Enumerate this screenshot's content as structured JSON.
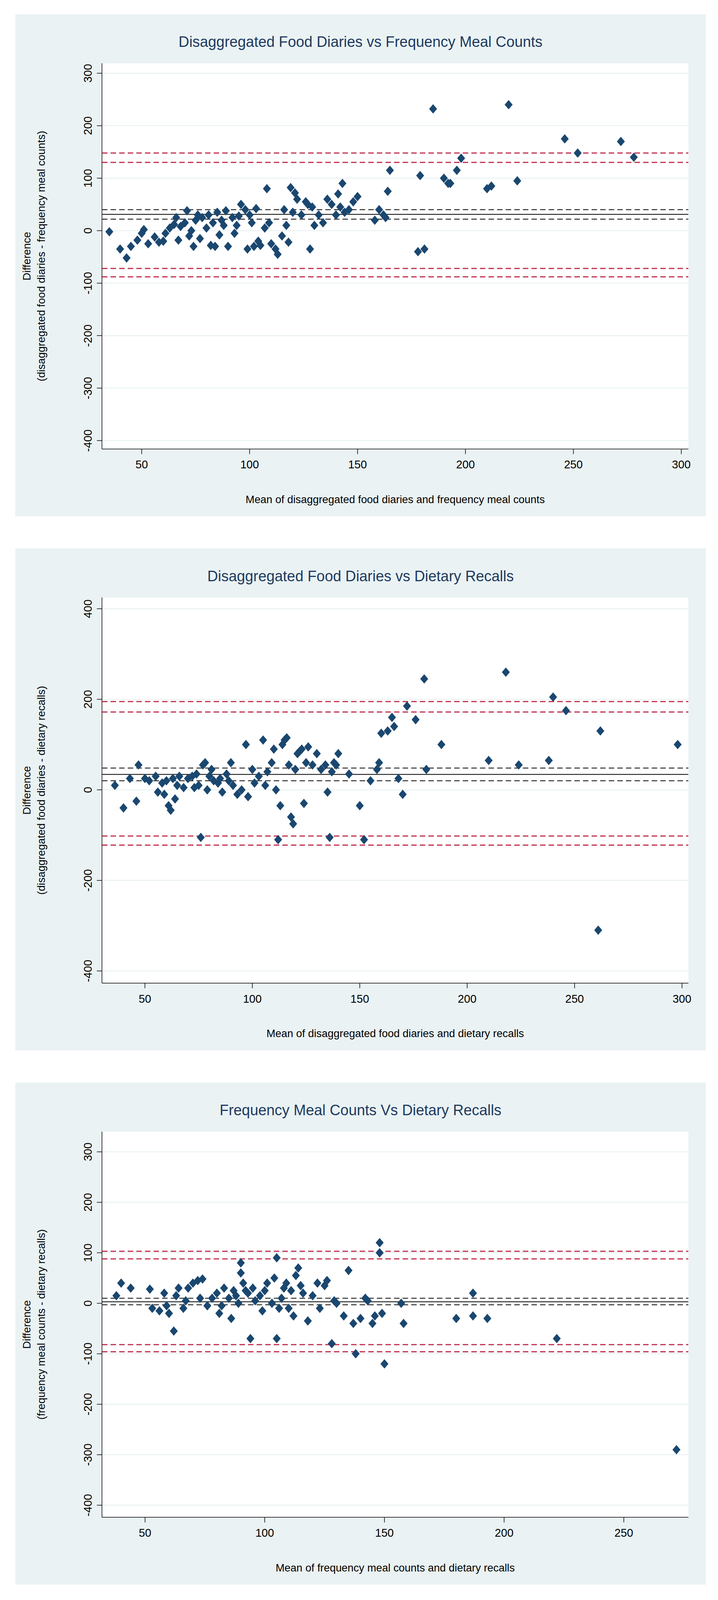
{
  "chart_data": [
    {
      "type": "scatter",
      "title": "Disaggregated Food Diaries vs Frequency Meal Counts",
      "xlabel": "Mean of disaggregated food diaries and frequency meal counts",
      "ylabel": [
        "Difference",
        "(disaggregated food diaries - frequency meal counts)"
      ],
      "x": [
        35,
        40,
        43,
        45,
        48,
        50,
        51,
        53,
        56,
        58,
        60,
        61,
        63,
        65,
        66,
        67,
        68,
        70,
        71,
        72,
        73,
        74,
        75,
        76,
        77,
        78,
        80,
        81,
        82,
        83,
        84,
        85,
        86,
        87,
        88,
        89,
        90,
        92,
        93,
        94,
        95,
        96,
        98,
        99,
        100,
        101,
        102,
        103,
        104,
        105,
        107,
        108,
        109,
        110,
        112,
        113,
        115,
        116,
        117,
        118,
        119,
        120,
        121,
        122,
        124,
        126,
        127,
        128,
        129,
        130,
        132,
        134,
        136,
        138,
        140,
        141,
        142,
        143,
        144,
        146,
        148,
        150,
        158,
        160,
        162,
        163,
        164,
        165,
        178,
        179,
        181,
        185,
        190,
        192,
        193,
        196,
        198,
        210,
        212,
        220,
        224,
        246,
        252,
        272,
        278
      ],
      "series": [
        {
          "color": "#1a476f",
          "marker": "diamond",
          "values": [
            -2,
            -35,
            -52,
            -30,
            -18,
            -5,
            2,
            -25,
            -12,
            -22,
            -20,
            -5,
            5,
            12,
            25,
            -18,
            8,
            15,
            38,
            -10,
            0,
            -30,
            20,
            30,
            -15,
            25,
            5,
            30,
            -28,
            15,
            -30,
            35,
            -8,
            20,
            10,
            38,
            -30,
            25,
            -5,
            10,
            28,
            50,
            40,
            -35,
            30,
            15,
            -30,
            42,
            -20,
            -28,
            5,
            80,
            15,
            -25,
            -35,
            -45,
            -10,
            40,
            10,
            -22,
            82,
            35,
            72,
            60,
            30,
            55,
            50,
            -35,
            45,
            10,
            30,
            15,
            60,
            50,
            30,
            70,
            45,
            90,
            35,
            40,
            55,
            65,
            20,
            40,
            30,
            25,
            75,
            115,
            -40,
            105,
            -35,
            232,
            100,
            90,
            90,
            115,
            138,
            80,
            85,
            240,
            95,
            175,
            148,
            170,
            140
          ]
        }
      ],
      "reference_lines": [
        {
          "value": 40,
          "color": "#000000",
          "line_style": "dashed"
        },
        {
          "value": 31,
          "color": "#000000",
          "line_style": "solid"
        },
        {
          "value": 22,
          "color": "#000000",
          "line_style": "dashed"
        },
        {
          "value": 148,
          "color": "#c0304f",
          "line_style": "dashed"
        },
        {
          "value": 130,
          "color": "#c0304f",
          "line_style": "dashed"
        },
        {
          "value": -72,
          "color": "#c0304f",
          "line_style": "dashed"
        },
        {
          "value": -88,
          "color": "#c0304f",
          "line_style": "dashed"
        }
      ],
      "xlim": [
        31.6,
        303.3
      ],
      "ylim": [
        -416,
        319
      ],
      "xticks": [
        50,
        100,
        150,
        200,
        250,
        300
      ],
      "yticks": [
        -400,
        -300,
        -200,
        -100,
        0,
        100,
        200,
        300
      ],
      "grid": true
    },
    {
      "type": "scatter",
      "title": "Disaggregated Food Diaries vs Dietary Recalls",
      "xlabel": "Mean of disaggregated food diaries and dietary recalls",
      "ylabel": [
        "Difference",
        "(disaggregated food diaries - dietary recalls)"
      ],
      "x": [
        36,
        40,
        43,
        46,
        47,
        50,
        52,
        55,
        56,
        58,
        59,
        60,
        61,
        62,
        63,
        64,
        65,
        66,
        68,
        70,
        72,
        73,
        74,
        75,
        76,
        77,
        78,
        79,
        80,
        81,
        82,
        84,
        85,
        86,
        88,
        89,
        90,
        91,
        93,
        95,
        97,
        98,
        100,
        101,
        103,
        105,
        106,
        107,
        109,
        110,
        111,
        112,
        113,
        114,
        115,
        116,
        117,
        118,
        119,
        120,
        121,
        122,
        123,
        124,
        125,
        126,
        128,
        130,
        132,
        134,
        135,
        136,
        137,
        138,
        139,
        140,
        145,
        150,
        152,
        155,
        158,
        159,
        160,
        163,
        165,
        166,
        168,
        170,
        172,
        176,
        180,
        181,
        188,
        210,
        218,
        224,
        238,
        240,
        246,
        261,
        262,
        298
      ],
      "series": [
        {
          "color": "#1a476f",
          "marker": "diamond",
          "values": [
            10,
            -40,
            25,
            -25,
            55,
            25,
            20,
            30,
            -5,
            15,
            -10,
            20,
            -35,
            -45,
            25,
            -20,
            10,
            30,
            5,
            25,
            30,
            5,
            35,
            10,
            -105,
            55,
            60,
            0,
            30,
            45,
            20,
            15,
            25,
            -5,
            35,
            20,
            60,
            10,
            -10,
            0,
            100,
            -15,
            45,
            15,
            30,
            110,
            10,
            40,
            60,
            90,
            0,
            -110,
            -35,
            100,
            110,
            115,
            55,
            -60,
            -75,
            45,
            80,
            85,
            90,
            -30,
            60,
            95,
            55,
            80,
            45,
            55,
            -5,
            -105,
            40,
            60,
            55,
            80,
            35,
            -35,
            -110,
            20,
            45,
            60,
            125,
            130,
            160,
            140,
            25,
            -10,
            185,
            155,
            245,
            45,
            100,
            65,
            260,
            55,
            65,
            205,
            175,
            -310,
            130,
            100
          ]
        }
      ],
      "reference_lines": [
        {
          "value": 48,
          "color": "#000000",
          "line_style": "dashed"
        },
        {
          "value": 34,
          "color": "#000000",
          "line_style": "solid"
        },
        {
          "value": 20,
          "color": "#000000",
          "line_style": "dashed"
        },
        {
          "value": 195,
          "color": "#c0304f",
          "line_style": "dashed"
        },
        {
          "value": 172,
          "color": "#c0304f",
          "line_style": "dashed"
        },
        {
          "value": -102,
          "color": "#c0304f",
          "line_style": "dashed"
        },
        {
          "value": -122,
          "color": "#c0304f",
          "line_style": "dashed"
        }
      ],
      "xlim": [
        30,
        303
      ],
      "ylim": [
        -427,
        425
      ],
      "xticks": [
        50,
        100,
        150,
        200,
        250,
        300
      ],
      "yticks": [
        -400,
        -200,
        0,
        200,
        400
      ],
      "grid": true
    },
    {
      "type": "scatter",
      "title": "Frequency Meal Counts Vs Dietary Recalls",
      "xlabel": "Mean of frequency meal counts and dietary recalls",
      "ylabel": [
        "Difference",
        "(frequency meal counts - dietary recalls)"
      ],
      "x": [
        38,
        40,
        44,
        52,
        53,
        56,
        58,
        59,
        60,
        62,
        63,
        64,
        66,
        67,
        68,
        70,
        72,
        73,
        74,
        76,
        78,
        80,
        81,
        82,
        83,
        85,
        86,
        87,
        88,
        89,
        90,
        90,
        91,
        92,
        93,
        94,
        95,
        96,
        98,
        99,
        100,
        101,
        103,
        104,
        105,
        105,
        106,
        107,
        108,
        109,
        110,
        111,
        112,
        113,
        114,
        115,
        116,
        118,
        120,
        122,
        123,
        125,
        126,
        128,
        129,
        130,
        133,
        135,
        137,
        138,
        140,
        142,
        143,
        145,
        146,
        148,
        148,
        149,
        150,
        157,
        158,
        180,
        187,
        187,
        193,
        222,
        272
      ],
      "series": [
        {
          "color": "#1a476f",
          "marker": "diamond",
          "values": [
            15,
            40,
            30,
            28,
            -10,
            -15,
            20,
            -5,
            -20,
            -55,
            15,
            30,
            -10,
            5,
            30,
            40,
            45,
            10,
            48,
            -5,
            10,
            20,
            -20,
            -5,
            30,
            10,
            -30,
            25,
            15,
            0,
            80,
            60,
            40,
            25,
            20,
            -70,
            30,
            5,
            15,
            -15,
            25,
            40,
            0,
            50,
            -70,
            90,
            -10,
            10,
            30,
            40,
            -10,
            25,
            -25,
            55,
            70,
            35,
            20,
            -35,
            15,
            40,
            -10,
            35,
            45,
            -80,
            5,
            0,
            -25,
            65,
            -40,
            -100,
            -30,
            10,
            5,
            -40,
            -25,
            100,
            120,
            -20,
            -120,
            0,
            -40,
            -30,
            20,
            -25,
            -30,
            -70,
            -290
          ]
        }
      ],
      "reference_lines": [
        {
          "value": 10,
          "color": "#000000",
          "line_style": "dashed"
        },
        {
          "value": 3,
          "color": "#000000",
          "line_style": "solid"
        },
        {
          "value": -3,
          "color": "#000000",
          "line_style": "dashed"
        },
        {
          "value": 103,
          "color": "#c0304f",
          "line_style": "dashed"
        },
        {
          "value": 88,
          "color": "#c0304f",
          "line_style": "dashed"
        },
        {
          "value": -82,
          "color": "#c0304f",
          "line_style": "dashed"
        },
        {
          "value": -96,
          "color": "#c0304f",
          "line_style": "dashed"
        }
      ],
      "xlim": [
        32,
        277
      ],
      "ylim": [
        -424,
        340
      ],
      "xticks": [
        50,
        100,
        150,
        200,
        250
      ],
      "yticks": [
        -400,
        -300,
        -200,
        -100,
        0,
        100,
        200,
        300
      ],
      "grid": true
    }
  ]
}
